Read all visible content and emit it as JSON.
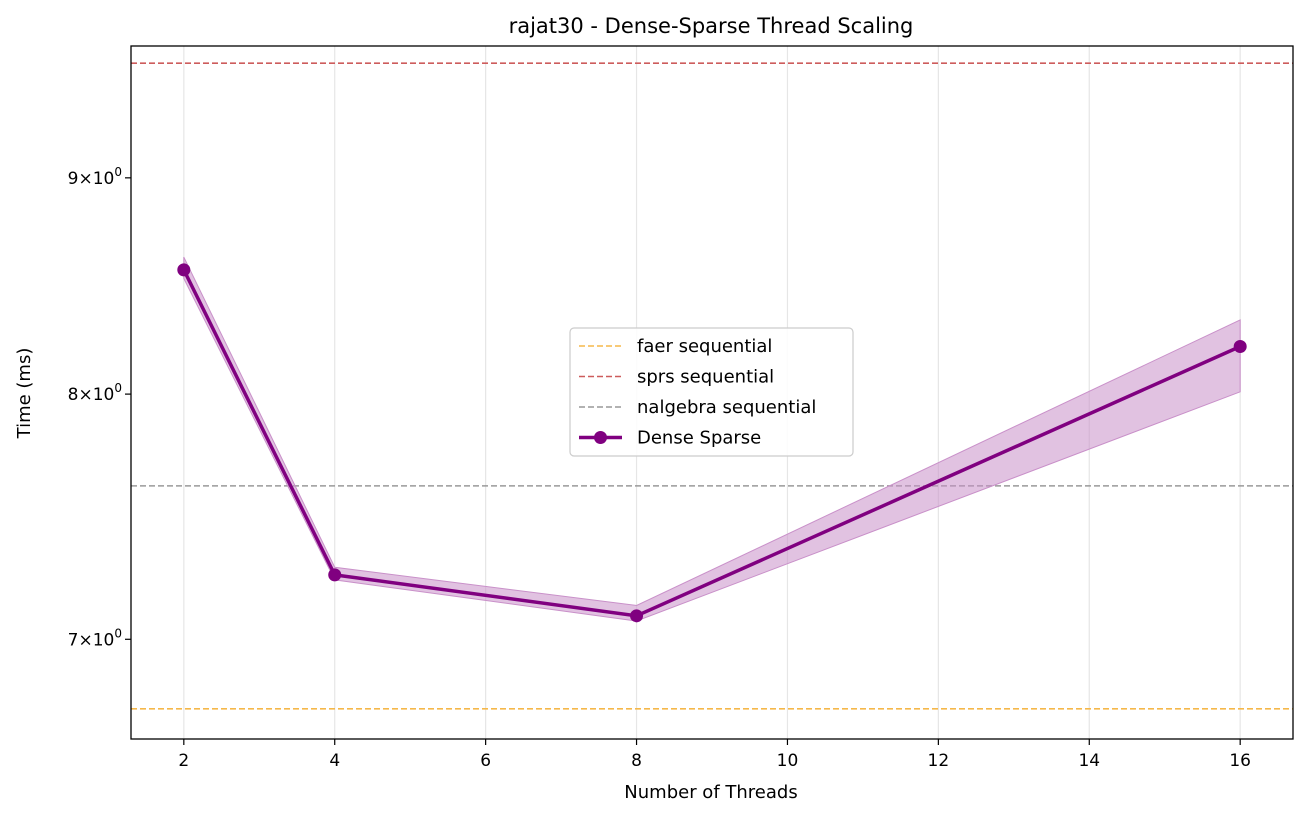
{
  "chart_data": {
    "type": "line",
    "title": "rajat30 - Dense-Sparse Thread Scaling",
    "xlabel": "Number of Threads",
    "ylabel": "Time (ms)",
    "y_scale": "log",
    "xlim": [
      1.3,
      16.7
    ],
    "ylim": [
      6.63,
      9.67
    ],
    "grid": "vertical",
    "legend_placement": "center",
    "x_ticks": [
      2,
      4,
      6,
      8,
      10,
      12,
      14,
      16
    ],
    "x_tick_labels": [
      "2",
      "4",
      "6",
      "8",
      "10",
      "12",
      "14",
      "16"
    ],
    "y_ticks": [
      {
        "value": 7,
        "base": "7",
        "exp": "0"
      },
      {
        "value": 8,
        "base": "8",
        "exp": "0"
      },
      {
        "value": 9,
        "base": "9",
        "exp": "0"
      }
    ],
    "reference_lines": [
      {
        "name": "faer sequential",
        "value": 6.74,
        "color": "#f5b84a"
      },
      {
        "name": "sprs sequential",
        "value": 9.58,
        "color": "#cd5c5c"
      },
      {
        "name": "nalgebra sequential",
        "value": 7.61,
        "color": "#999999"
      }
    ],
    "series": [
      {
        "name": "Dense Sparse",
        "color": "#800080",
        "band_color": "#c990c9",
        "x": [
          2,
          4,
          8,
          16
        ],
        "y": [
          8.56,
          7.25,
          7.09,
          8.21
        ],
        "lower": [
          8.52,
          7.23,
          7.07,
          8.01
        ],
        "upper": [
          8.62,
          7.28,
          7.13,
          8.33
        ]
      }
    ],
    "legend_entries": [
      "faer sequential",
      "sprs sequential",
      "nalgebra sequential",
      "Dense Sparse"
    ]
  }
}
